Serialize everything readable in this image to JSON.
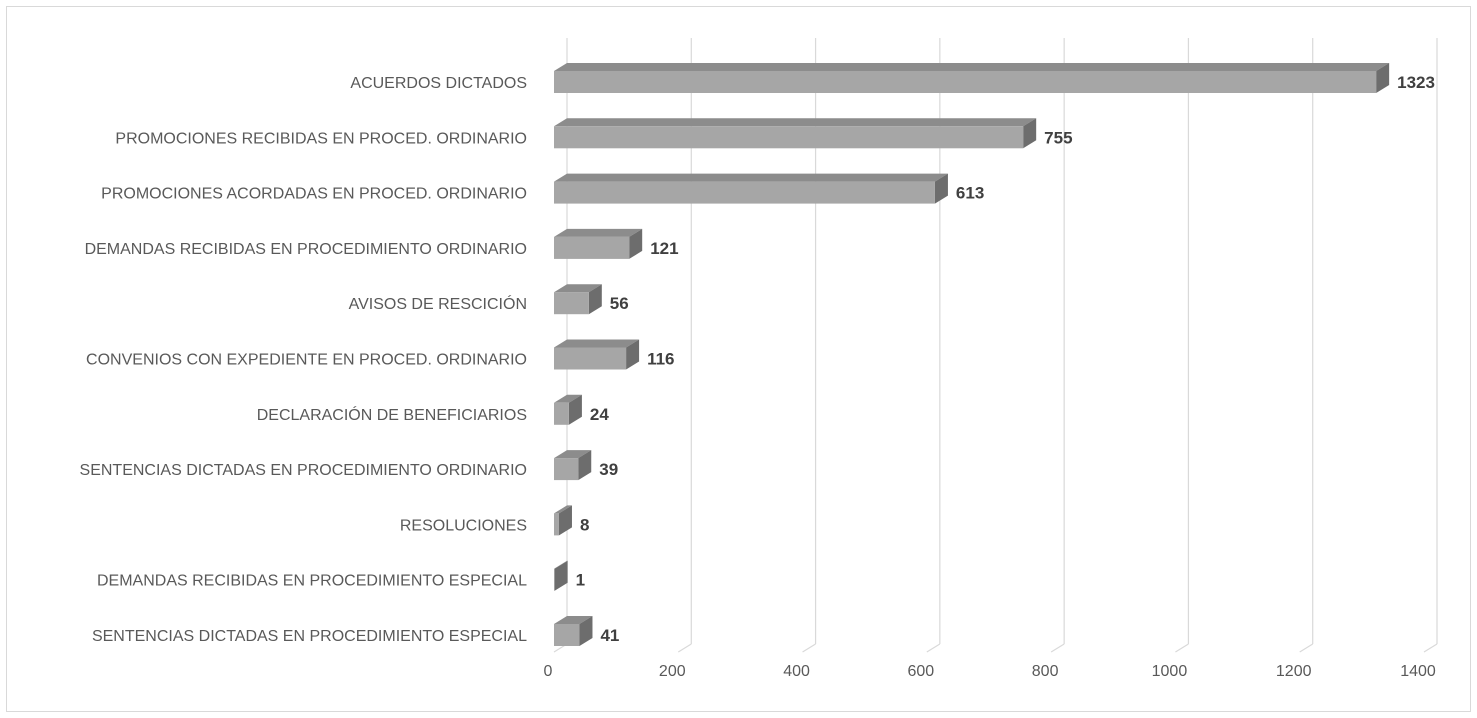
{
  "chart_data": {
    "type": "bar",
    "orientation": "horizontal",
    "style": "3d",
    "title": "",
    "xlabel": "",
    "ylabel": "",
    "xlim": [
      0,
      1400
    ],
    "ticks": [
      "0",
      "200",
      "400",
      "600",
      "800",
      "1000",
      "1200",
      "1400"
    ],
    "tick_values": [
      0,
      200,
      400,
      600,
      800,
      1000,
      1200,
      1400
    ],
    "grid": true,
    "legend": "none",
    "colors": {
      "bar_front": "#a6a6a6",
      "bar_top": "#8c8c8c",
      "bar_side": "#6d6d6d",
      "grid": "#d9d9d9"
    },
    "categories": [
      "ACUERDOS DICTADOS",
      "PROMOCIONES RECIBIDAS EN PROCED. ORDINARIO",
      "PROMOCIONES ACORDADAS EN PROCED. ORDINARIO",
      "DEMANDAS RECIBIDAS EN PROCEDIMIENTO ORDINARIO",
      "AVISOS DE RESCICIÓN",
      "CONVENIOS CON EXPEDIENTE EN PROCED. ORDINARIO",
      "DECLARACIÓN DE BENEFICIARIOS",
      "SENTENCIAS DICTADAS EN PROCEDIMIENTO ORDINARIO",
      "RESOLUCIONES",
      "DEMANDAS RECIBIDAS EN PROCEDIMIENTO ESPECIAL",
      "SENTENCIAS DICTADAS EN PROCEDIMIENTO ESPECIAL"
    ],
    "values": [
      1323,
      755,
      613,
      121,
      56,
      116,
      24,
      39,
      8,
      1,
      41
    ],
    "value_labels": [
      "1323",
      "755",
      "613",
      "121",
      "56",
      "116",
      "24",
      "39",
      "8",
      "1",
      "41"
    ]
  }
}
